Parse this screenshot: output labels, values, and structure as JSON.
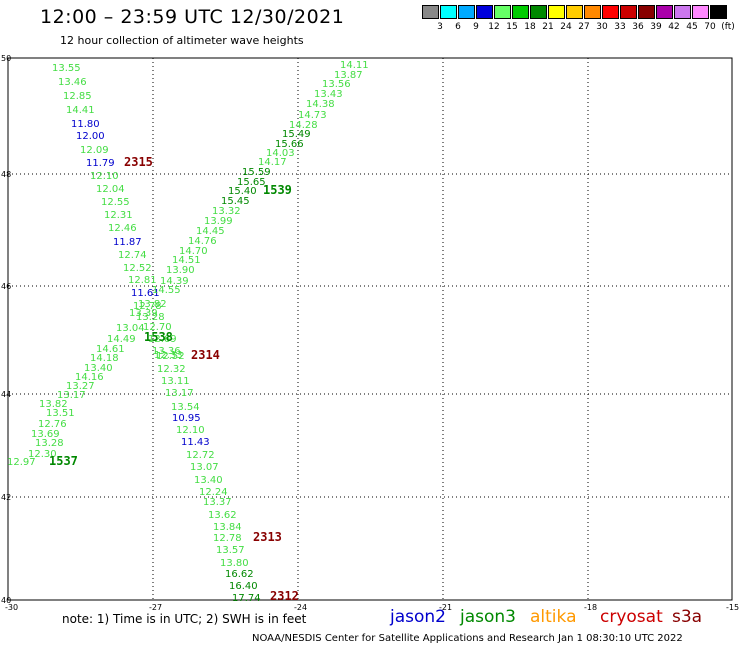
{
  "header": {
    "title": "12:00 – 23:59 UTC 12/30/2021",
    "subtitle": "12 hour collection of altimeter wave heights"
  },
  "scale": {
    "colors": [
      "#888888",
      "#00ffff",
      "#00aaff",
      "#0000dd",
      "#66ff66",
      "#00cc00",
      "#008800",
      "#ffff00",
      "#ffcc00",
      "#ff8800",
      "#ff0000",
      "#cc0000",
      "#880000",
      "#aa00aa",
      "#cc77ee",
      "#ff88ff",
      "#000000"
    ],
    "labels": [
      "3",
      "6",
      "9",
      "12",
      "15",
      "18",
      "21",
      "24",
      "27",
      "30",
      "33",
      "36",
      "39",
      "42",
      "45",
      "70"
    ],
    "unit": "(ft)"
  },
  "axes": {
    "y_ticks": [
      "50",
      "48",
      "46",
      "44",
      "42",
      "40"
    ],
    "x_ticks": [
      "-30",
      "-27",
      "-24",
      "-21",
      "-18",
      "-15"
    ]
  },
  "points": {
    "descending_track": [
      [
        "13.55",
        "light"
      ],
      [
        "13.46",
        "light"
      ],
      [
        "12.85",
        "light"
      ],
      [
        "14.41",
        "light"
      ],
      [
        "11.80",
        "blue"
      ],
      [
        "12.00",
        "blue"
      ],
      [
        "12.09",
        "light"
      ],
      [
        "11.79",
        "blue"
      ],
      [
        "12.10",
        "light"
      ],
      [
        "12.04",
        "light"
      ],
      [
        "12.55",
        "light"
      ],
      [
        "12.31",
        "light"
      ],
      [
        "12.46",
        "light"
      ],
      [
        "11.87",
        "blue"
      ],
      [
        "12.74",
        "light"
      ],
      [
        "12.52",
        "light"
      ],
      [
        "12.81",
        "light"
      ],
      [
        "11.61",
        "blue"
      ],
      [
        "12.78",
        "light"
      ],
      [
        "13.28",
        "light"
      ],
      [
        "12.70",
        "light"
      ],
      [
        "12.69",
        "light"
      ],
      [
        "13.36",
        "light"
      ],
      [
        "12.33",
        "light"
      ],
      [
        "12.52",
        "light"
      ],
      [
        "12.32",
        "light"
      ],
      [
        "13.11",
        "light"
      ],
      [
        "13.17",
        "light"
      ],
      [
        "13.54",
        "light"
      ],
      [
        "10.95",
        "blue"
      ],
      [
        "12.10",
        "light"
      ],
      [
        "11.43",
        "blue"
      ],
      [
        "12.72",
        "light"
      ],
      [
        "13.07",
        "light"
      ],
      [
        "13.40",
        "light"
      ],
      [
        "12.24",
        "light"
      ],
      [
        "13.37",
        "light"
      ],
      [
        "13.62",
        "light"
      ],
      [
        "13.84",
        "light"
      ],
      [
        "12.78",
        "light"
      ],
      [
        "13.57",
        "light"
      ],
      [
        "13.80",
        "light"
      ],
      [
        "16.62",
        "dark"
      ],
      [
        "16.40",
        "dark"
      ],
      [
        "17.74",
        "dark"
      ]
    ],
    "ascending_track": [
      [
        "14.11",
        "light"
      ],
      [
        "13.87",
        "light"
      ],
      [
        "13.56",
        "light"
      ],
      [
        "13.43",
        "light"
      ],
      [
        "14.38",
        "light"
      ],
      [
        "14.73",
        "light"
      ],
      [
        "14.28",
        "light"
      ],
      [
        "15.49",
        "dark"
      ],
      [
        "15.66",
        "dark"
      ],
      [
        "14.03",
        "light"
      ],
      [
        "14.17",
        "light"
      ],
      [
        "15.59",
        "dark"
      ],
      [
        "15.65",
        "dark"
      ],
      [
        "15.40",
        "dark"
      ],
      [
        "15.45",
        "dark"
      ],
      [
        "13.32",
        "light"
      ],
      [
        "13.99",
        "light"
      ],
      [
        "14.45",
        "light"
      ],
      [
        "14.76",
        "light"
      ],
      [
        "14.70",
        "light"
      ],
      [
        "14.51",
        "light"
      ],
      [
        "13.90",
        "light"
      ],
      [
        "14.39",
        "light"
      ],
      [
        "14.55",
        "light"
      ],
      [
        "13.82",
        "light"
      ],
      [
        "13.39",
        "light"
      ],
      [
        "13.04",
        "light"
      ],
      [
        "14.49",
        "light"
      ],
      [
        "14.61",
        "light"
      ],
      [
        "14.18",
        "light"
      ],
      [
        "13.40",
        "light"
      ],
      [
        "14.16",
        "light"
      ],
      [
        "13.27",
        "light"
      ],
      [
        "13.17",
        "light"
      ],
      [
        "13.82",
        "light"
      ],
      [
        "13.51",
        "light"
      ],
      [
        "12.76",
        "light"
      ],
      [
        "13.69",
        "light"
      ],
      [
        "13.28",
        "light"
      ],
      [
        "12.30",
        "light"
      ],
      [
        "12.97",
        "light"
      ]
    ],
    "track_times": [
      [
        "2315",
        "maroon"
      ],
      [
        "1539",
        "dark"
      ],
      [
        "1538",
        "dark"
      ],
      [
        "2314",
        "maroon"
      ],
      [
        "1537",
        "dark"
      ],
      [
        "2313",
        "maroon"
      ],
      [
        "2312",
        "maroon"
      ]
    ]
  },
  "legend": {
    "note": "note:  1) Time is in UTC;  2) SWH is in feet",
    "satellites": [
      {
        "name": "jason2",
        "color": "#0000cc"
      },
      {
        "name": "jason3",
        "color": "#008800"
      },
      {
        "name": "altika",
        "color": "#ff9900"
      },
      {
        "name": "cryosat",
        "color": "#cc0000"
      },
      {
        "name": "s3a",
        "color": "#880000"
      }
    ]
  },
  "footer": "NOAA/NESDIS Center for Satellite Applications and Research    Jan  1 08:30:10 UTC 2022"
}
